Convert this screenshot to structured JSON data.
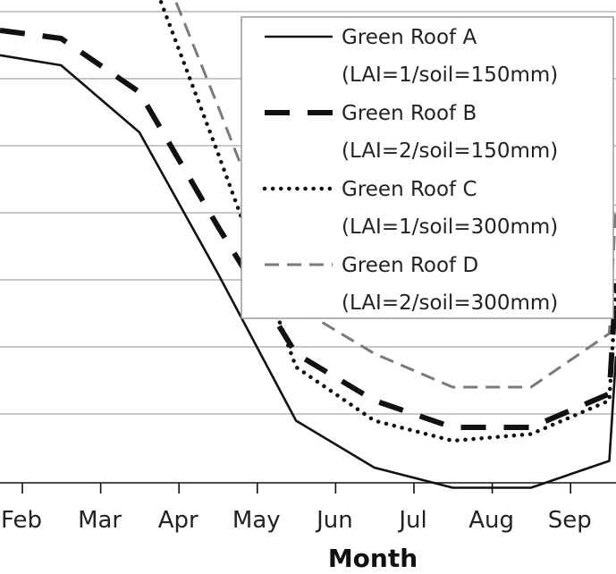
{
  "chart_data": {
    "type": "line",
    "xlabel": "Month",
    "categories": [
      "Feb",
      "Mar",
      "Apr",
      "May",
      "Jun",
      "Jul",
      "Aug",
      "Sep"
    ],
    "grid": true,
    "legend_position": "top-right",
    "series": [
      {
        "name": "Green Roof A",
        "detail": "(LAI=1/soil=150mm)",
        "style": "solid",
        "color": "#111111",
        "values": [
          5.2,
          4.2,
          2.1,
          -0.1,
          -0.8,
          -1.1,
          -1.1,
          -0.7
        ]
      },
      {
        "name": "Green Roof B",
        "detail": "(LAI=2/soil=150mm)",
        "style": "longdash",
        "color": "#111111",
        "values": [
          5.6,
          4.8,
          2.8,
          0.9,
          0.2,
          -0.2,
          -0.2,
          0.3
        ]
      },
      {
        "name": "Green Roof C",
        "detail": "(LAI=1/soil=300mm)",
        "style": "dotted",
        "color": "#111111",
        "values": [
          8.2,
          7.0,
          3.9,
          0.7,
          -0.1,
          -0.4,
          -0.3,
          0.2
        ]
      },
      {
        "name": "Green Roof D",
        "detail": "(LAI=2/soil=300mm)",
        "style": "dashed",
        "color": "#7a7a7a",
        "values": [
          8.6,
          7.5,
          4.6,
          1.6,
          0.9,
          0.4,
          0.4,
          1.2
        ]
      }
    ]
  }
}
